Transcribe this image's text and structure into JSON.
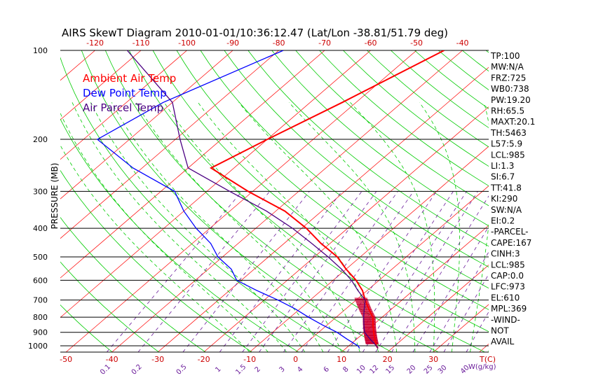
{
  "chart_data": {
    "type": "line",
    "title": "AIRS SkewT Diagram 2010-01-01/10:36:12.47 (Lat/Lon -38.81/51.79 deg)",
    "ylabel": "PRESSURE (MB)",
    "xlabel": "T(C)",
    "mixing_label": "W(g/kg)",
    "y_scale": "log",
    "ylim": [
      1050,
      100
    ],
    "pressure_ticks": [
      100,
      200,
      300,
      400,
      500,
      600,
      700,
      800,
      900,
      1000
    ],
    "top_temp_ticks": [
      -120,
      -110,
      -100,
      -90,
      -80,
      -70,
      -60,
      -50,
      -40
    ],
    "bottom_temp_ticks": [
      -50,
      -40,
      -30,
      -20,
      -10,
      0,
      10,
      20,
      30
    ],
    "mixing_ratio_ticks": [
      "0.1",
      "0.2",
      "0.5",
      "1",
      "1.5",
      "2",
      "3",
      "4",
      "6",
      "8",
      "10",
      "12",
      "15",
      "20",
      "25",
      "30",
      "40"
    ],
    "series": [
      {
        "name": "Ambient Air Temp",
        "color": "#ff0000",
        "points": [
          [
            100,
            -44
          ],
          [
            150,
            -53
          ],
          [
            200,
            -60
          ],
          [
            250,
            -65
          ],
          [
            300,
            -51
          ],
          [
            350,
            -38
          ],
          [
            400,
            -29
          ],
          [
            450,
            -22
          ],
          [
            500,
            -15
          ],
          [
            550,
            -10
          ],
          [
            600,
            -5
          ],
          [
            650,
            -1
          ],
          [
            700,
            2
          ],
          [
            750,
            5
          ],
          [
            800,
            8
          ],
          [
            850,
            10
          ],
          [
            900,
            12
          ],
          [
            950,
            14
          ],
          [
            1000,
            16
          ],
          [
            1020,
            17
          ]
        ]
      },
      {
        "name": "Dew Point Temp",
        "color": "#0000ff",
        "points": [
          [
            100,
            -79
          ],
          [
            150,
            -92
          ],
          [
            200,
            -97
          ],
          [
            250,
            -82
          ],
          [
            300,
            -67
          ],
          [
            350,
            -60
          ],
          [
            400,
            -53
          ],
          [
            450,
            -46
          ],
          [
            500,
            -41
          ],
          [
            550,
            -35
          ],
          [
            600,
            -31
          ],
          [
            650,
            -24
          ],
          [
            700,
            -17
          ],
          [
            750,
            -11
          ],
          [
            800,
            -6
          ],
          [
            850,
            -1
          ],
          [
            900,
            4
          ],
          [
            950,
            8
          ],
          [
            1000,
            12
          ],
          [
            1020,
            13
          ]
        ]
      },
      {
        "name": "Air Parcel Temp",
        "color": "#4b0082",
        "points": [
          [
            100,
            -113
          ],
          [
            150,
            -90
          ],
          [
            200,
            -79
          ],
          [
            250,
            -70
          ],
          [
            300,
            -55
          ],
          [
            350,
            -42
          ],
          [
            400,
            -32
          ],
          [
            450,
            -24
          ],
          [
            500,
            -17
          ],
          [
            550,
            -11
          ],
          [
            600,
            -6
          ],
          [
            650,
            -2
          ],
          [
            700,
            2
          ],
          [
            750,
            4
          ],
          [
            800,
            6
          ],
          [
            850,
            8
          ],
          [
            900,
            10
          ],
          [
            950,
            13
          ],
          [
            1000,
            16
          ],
          [
            1020,
            17
          ]
        ]
      }
    ],
    "cape_shading": {
      "color": "#cc0033",
      "p_top": 690,
      "p_bottom": 985
    }
  },
  "legend": {
    "ambient": "Ambient Air Temp",
    "dewpoint": "Dew Point Temp",
    "parcel": "Air Parcel Temp"
  },
  "stats": [
    "TP:100",
    "MW:N/A",
    "FRZ:725",
    "WB0:738",
    "PW:19.20",
    "RH:65.5",
    "MAXT:20.1",
    "TH:5463",
    "L57:5.9",
    "LCL:985",
    "LI:1.3",
    "SI:6.7",
    "TT:41.8",
    "KI:290",
    "SW:N/A",
    "EI:0.2",
    "-PARCEL-",
    "CAPE:167",
    "CINH:3",
    "LCL:985",
    "CAP:0.0",
    "LFC:973",
    "EL:610",
    "MPL:369",
    "-WIND-",
    "NOT",
    "AVAIL"
  ],
  "colors": {
    "isotherm": "#ff0000",
    "dry_adiabat": "#00cc00",
    "moist_adiabat": "#00cc00",
    "mixing_ratio": "#6a1b9a",
    "isobar": "#000000"
  }
}
